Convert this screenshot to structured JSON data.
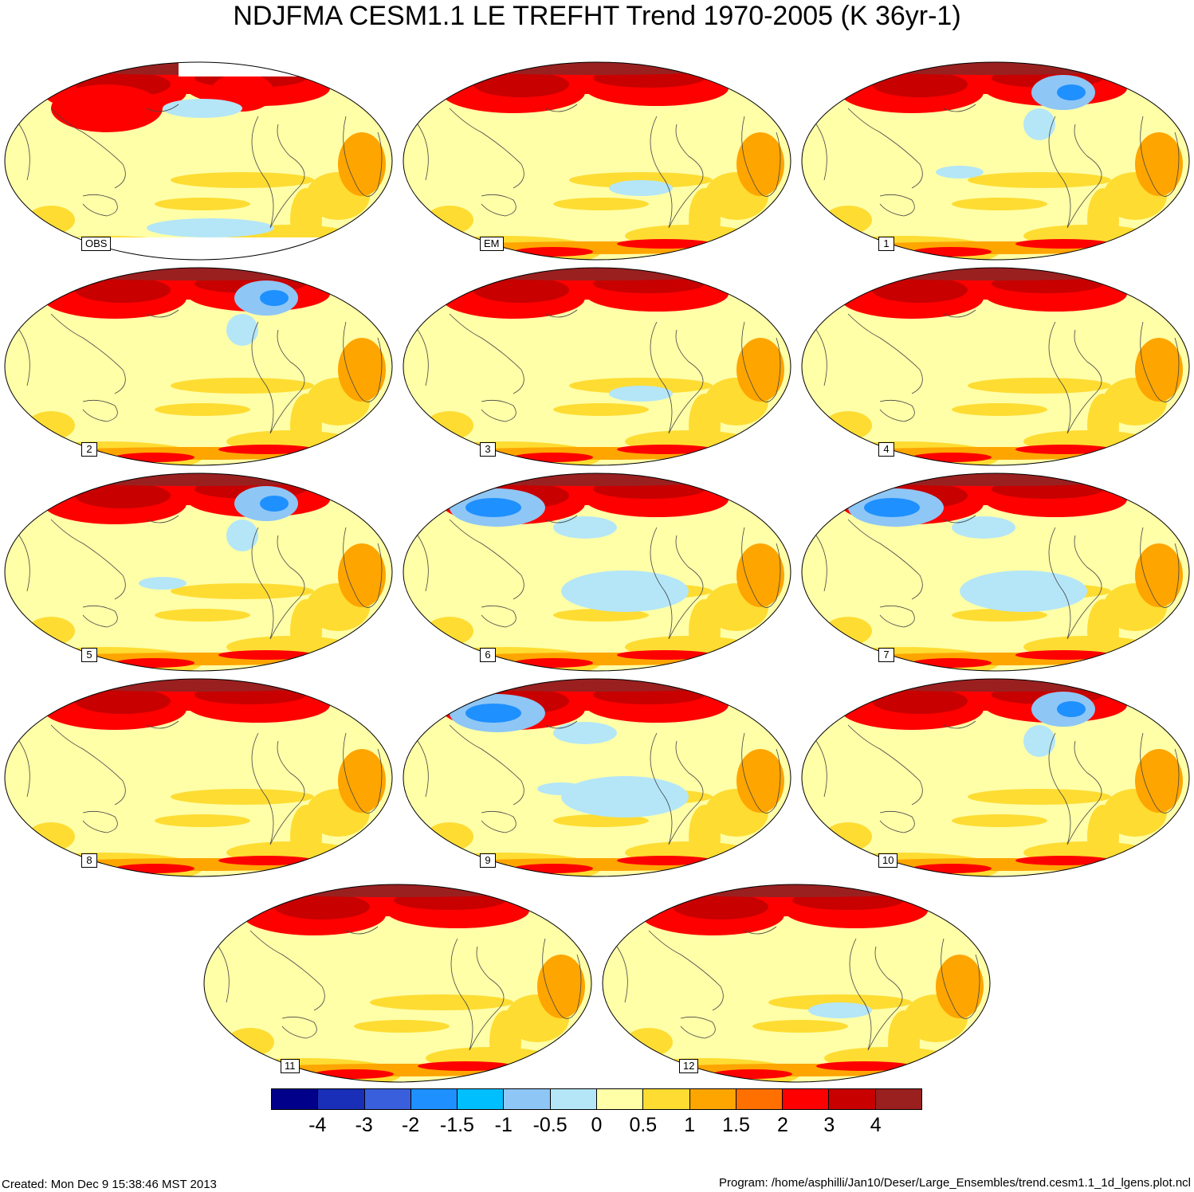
{
  "title": "NDJFMA CESM1.1 LE TREFHT Trend 1970-2005 (K 36yr-1)",
  "panels": [
    {
      "label": "OBS",
      "pattern": "obs"
    },
    {
      "label": "EM",
      "pattern": "warm"
    },
    {
      "label": "1",
      "pattern": "na-cold"
    },
    {
      "label": "2",
      "pattern": "na-cold"
    },
    {
      "label": "3",
      "pattern": "warm"
    },
    {
      "label": "4",
      "pattern": "warm"
    },
    {
      "label": "5",
      "pattern": "na-cold"
    },
    {
      "label": "6",
      "pattern": "eurasia-cold"
    },
    {
      "label": "7",
      "pattern": "eurasia-cold"
    },
    {
      "label": "8",
      "pattern": "warm"
    },
    {
      "label": "9",
      "pattern": "eurasia-cold"
    },
    {
      "label": "10",
      "pattern": "na-cold"
    },
    {
      "label": "11",
      "pattern": "warm"
    },
    {
      "label": "12",
      "pattern": "warm"
    }
  ],
  "colorbar": {
    "colors": [
      "#00008b",
      "#1a2fb8",
      "#3a5fdc",
      "#1e90ff",
      "#00bfff",
      "#8ec6f5",
      "#b4e6f8",
      "#ffffa8",
      "#fedc32",
      "#fea500",
      "#ff7000",
      "#ff0000",
      "#c80000",
      "#9a2020"
    ],
    "tick_labels": [
      "-4",
      "-3",
      "-2",
      "-1.5",
      "-1",
      "-0.5",
      "0",
      "0.5",
      "1",
      "1.5",
      "2",
      "3",
      "4"
    ]
  },
  "footer": {
    "created": "Created: Mon Dec  9 15:38:46 MST 2013",
    "program": "Program: /home/asphilli/Jan10/Deser/Large_Ensembles/trend.cesm1.1_1d_lgens.plot.ncl"
  }
}
